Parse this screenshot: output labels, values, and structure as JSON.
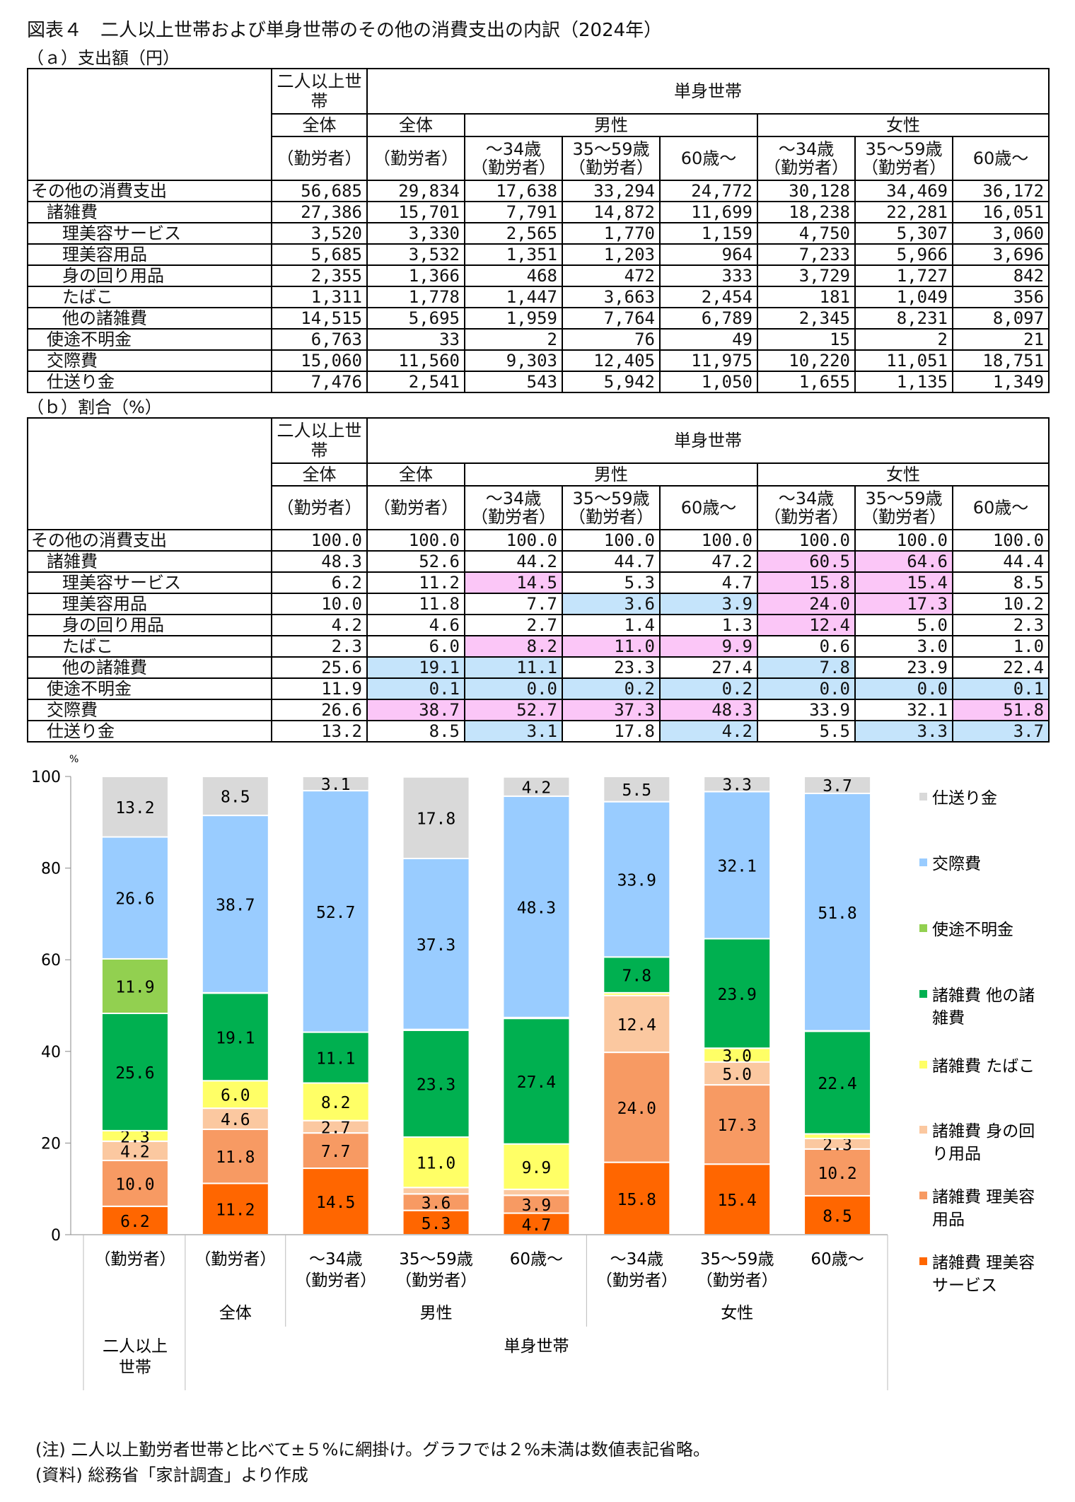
{
  "title": "図表４　二人以上世帯および単身世帯のその他の消費支出の内訳（2024年）",
  "subtitle_a": "（ａ）支出額（円）",
  "subtitle_b": "（ｂ）割合（%）",
  "headers": {
    "two_plus": "二人以上世帯",
    "single": "単身世帯",
    "zentai": "全体",
    "male": "男性",
    "female": "女性",
    "worker": "（勤労者）",
    "age_u34": "～34歳（勤労者）",
    "age_35_59": "35～59歳（勤労者）",
    "age_60": "60歳～"
  },
  "row_labels": [
    "その他の消費支出",
    "諸雑費",
    "理美容サービス",
    "理美容用品",
    "身の回り用品",
    "たばこ",
    "他の諸雑費",
    "使途不明金",
    "交際費",
    "仕送り金"
  ],
  "row_indent": [
    0,
    1,
    2,
    2,
    2,
    2,
    2,
    1,
    1,
    1
  ],
  "table_a": [
    [
      "56,685",
      "29,834",
      "17,638",
      "33,294",
      "24,772",
      "30,128",
      "34,469",
      "36,172"
    ],
    [
      "27,386",
      "15,701",
      "7,791",
      "14,872",
      "11,699",
      "18,238",
      "22,281",
      "16,051"
    ],
    [
      "3,520",
      "3,330",
      "2,565",
      "1,770",
      "1,159",
      "4,750",
      "5,307",
      "3,060"
    ],
    [
      "5,685",
      "3,532",
      "1,351",
      "1,203",
      "964",
      "7,233",
      "5,966",
      "3,696"
    ],
    [
      "2,355",
      "1,366",
      "468",
      "472",
      "333",
      "3,729",
      "1,727",
      "842"
    ],
    [
      "1,311",
      "1,778",
      "1,447",
      "3,663",
      "2,454",
      "181",
      "1,049",
      "356"
    ],
    [
      "14,515",
      "5,695",
      "1,959",
      "7,764",
      "6,789",
      "2,345",
      "8,231",
      "8,097"
    ],
    [
      "6,763",
      "33",
      "2",
      "76",
      "49",
      "15",
      "2",
      "21"
    ],
    [
      "15,060",
      "11,560",
      "9,303",
      "12,405",
      "11,975",
      "10,220",
      "11,051",
      "18,751"
    ],
    [
      "7,476",
      "2,541",
      "543",
      "5,942",
      "1,050",
      "1,655",
      "1,135",
      "1,349"
    ]
  ],
  "table_b": [
    [
      "100.0",
      "100.0",
      "100.0",
      "100.0",
      "100.0",
      "100.0",
      "100.0",
      "100.0"
    ],
    [
      "48.3",
      "52.6",
      "44.2",
      "44.7",
      "47.2",
      "60.5",
      "64.6",
      "44.4"
    ],
    [
      "6.2",
      "11.2",
      "14.5",
      "5.3",
      "4.7",
      "15.8",
      "15.4",
      "8.5"
    ],
    [
      "10.0",
      "11.8",
      "7.7",
      "3.6",
      "3.9",
      "24.0",
      "17.3",
      "10.2"
    ],
    [
      "4.2",
      "4.6",
      "2.7",
      "1.4",
      "1.3",
      "12.4",
      "5.0",
      "2.3"
    ],
    [
      "2.3",
      "6.0",
      "8.2",
      "11.0",
      "9.9",
      "0.6",
      "3.0",
      "1.0"
    ],
    [
      "25.6",
      "19.1",
      "11.1",
      "23.3",
      "27.4",
      "7.8",
      "23.9",
      "22.4"
    ],
    [
      "11.9",
      "0.1",
      "0.0",
      "0.2",
      "0.2",
      "0.0",
      "0.0",
      "0.1"
    ],
    [
      "26.6",
      "38.7",
      "52.7",
      "37.3",
      "48.3",
      "33.9",
      "32.1",
      "51.8"
    ],
    [
      "13.2",
      "8.5",
      "3.1",
      "17.8",
      "4.2",
      "5.5",
      "3.3",
      "3.7"
    ]
  ],
  "table_b_highlight": [
    [
      "",
      "",
      "",
      "",
      "",
      "",
      "",
      ""
    ],
    [
      "",
      "",
      "",
      "",
      "",
      "p",
      "p",
      ""
    ],
    [
      "",
      "",
      "p",
      "",
      "",
      "p",
      "p",
      ""
    ],
    [
      "",
      "",
      "",
      "b",
      "b",
      "p",
      "p",
      ""
    ],
    [
      "",
      "",
      "",
      "",
      "",
      "p",
      "",
      ""
    ],
    [
      "",
      "",
      "p",
      "p",
      "p",
      "",
      "",
      ""
    ],
    [
      "",
      "b",
      "b",
      "",
      "",
      "b",
      "",
      ""
    ],
    [
      "",
      "b",
      "b",
      "b",
      "b",
      "b",
      "b",
      "b"
    ],
    [
      "",
      "p",
      "p",
      "p",
      "p",
      "",
      "",
      "p"
    ],
    [
      "",
      "",
      "b",
      "",
      "b",
      "",
      "b",
      "b"
    ]
  ],
  "highlight_colors": {
    "p": "#fbc6f7",
    "b": "#c5e4fb"
  },
  "chart_data": {
    "type": "bar",
    "stacked": true,
    "unit_label": "%",
    "ylim": [
      0,
      100
    ],
    "yticks": [
      0,
      20,
      40,
      60,
      80,
      100
    ],
    "categories": [
      "（勤労者）",
      "（勤労者）",
      "～34歳（勤労者）",
      "35～59歳（勤労者）",
      "60歳～",
      "～34歳（勤労者）",
      "35～59歳（勤労者）",
      "60歳～"
    ],
    "group_level1": [
      {
        "label": "全体",
        "span": [
          1,
          1
        ]
      },
      {
        "label": "男性",
        "span": [
          2,
          4
        ]
      },
      {
        "label": "女性",
        "span": [
          5,
          7
        ]
      }
    ],
    "group_level2": [
      {
        "label": "二人以上世帯",
        "span": [
          0,
          0
        ]
      },
      {
        "label": "単身世帯",
        "span": [
          1,
          7
        ]
      }
    ],
    "series": [
      {
        "name": "諸雑費 理美容サービス",
        "color": "#ff6600",
        "values": [
          6.2,
          11.2,
          14.5,
          5.3,
          4.7,
          15.8,
          15.4,
          8.5
        ]
      },
      {
        "name": "諸雑費 理美容用品",
        "color": "#f79a63",
        "values": [
          10.0,
          11.8,
          7.7,
          3.6,
          3.9,
          24.0,
          17.3,
          10.2
        ]
      },
      {
        "name": "諸雑費 身の回り用品",
        "color": "#fbc8a0",
        "values": [
          4.2,
          4.6,
          2.7,
          1.4,
          1.3,
          12.4,
          5.0,
          2.3
        ]
      },
      {
        "name": "諸雑費 たばこ",
        "color": "#ffff66",
        "values": [
          2.3,
          6.0,
          8.2,
          11.0,
          9.9,
          0.6,
          3.0,
          1.0
        ]
      },
      {
        "name": "諸雑費 他の諸雑費",
        "color": "#00b050",
        "values": [
          25.6,
          19.1,
          11.1,
          23.3,
          27.4,
          7.8,
          23.9,
          22.4
        ]
      },
      {
        "name": "使途不明金",
        "color": "#92d050",
        "values": [
          11.9,
          0.1,
          0.0,
          0.2,
          0.2,
          0.0,
          0.0,
          0.1
        ]
      },
      {
        "name": "交際費",
        "color": "#99ccff",
        "values": [
          26.6,
          38.7,
          52.7,
          37.3,
          48.3,
          33.9,
          32.1,
          51.8
        ]
      },
      {
        "name": "仕送り金",
        "color": "#d9d9d9",
        "values": [
          13.2,
          8.5,
          3.1,
          17.8,
          4.2,
          5.5,
          3.3,
          3.7
        ]
      }
    ],
    "legend_lines": [
      [
        "仕送り金"
      ],
      [
        "交際費"
      ],
      [
        "使途不明金"
      ],
      [
        "諸雑費 他の諸",
        "雑費"
      ],
      [
        "諸雑費 たばこ"
      ],
      [
        "諸雑費 身の回",
        "り用品"
      ],
      [
        "諸雑費 理美容",
        "用品"
      ],
      [
        "諸雑費 理美容",
        "サービス"
      ]
    ],
    "label_threshold": 2
  },
  "notes": [
    "(注) 二人以上勤労者世帯と比べて±５%に網掛け。グラフでは２%未満は数値表記省略。",
    "(資料) 総務省「家計調査」より作成"
  ]
}
